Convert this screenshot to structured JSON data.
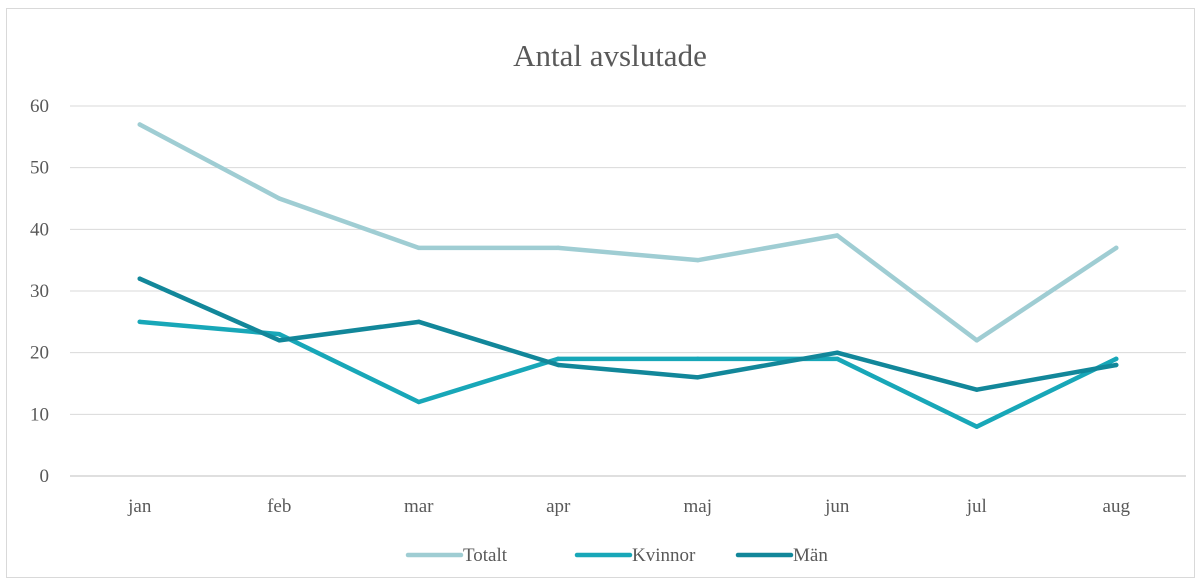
{
  "chart_data": {
    "type": "line",
    "title": "Antal avslutade",
    "xlabel": "",
    "ylabel": "",
    "categories": [
      "jan",
      "feb",
      "mar",
      "apr",
      "maj",
      "jun",
      "jul",
      "aug"
    ],
    "ylim": [
      0,
      60
    ],
    "yticks": [
      "0",
      "10",
      "20",
      "30",
      "40",
      "50",
      "60"
    ],
    "grid": true,
    "legend_position": "bottom",
    "series": [
      {
        "name": "Totalt",
        "color": "#9fcdd3",
        "values": [
          57,
          45,
          37,
          37,
          35,
          39,
          22,
          37
        ]
      },
      {
        "name": "Kvinnor",
        "color": "#18a7b8",
        "values": [
          25,
          23,
          12,
          19,
          19,
          19,
          8,
          19
        ]
      },
      {
        "name": "Män",
        "color": "#12879a",
        "values": [
          32,
          22,
          25,
          18,
          16,
          20,
          14,
          18
        ]
      }
    ]
  }
}
